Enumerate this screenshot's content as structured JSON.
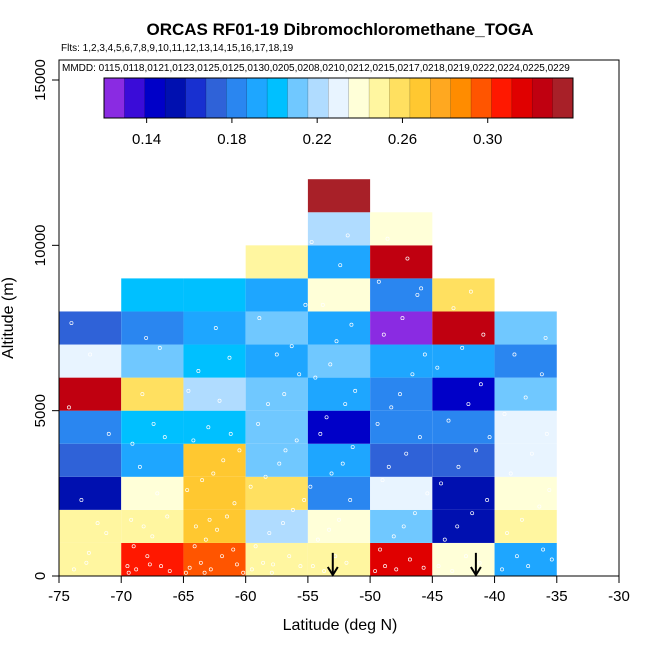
{
  "chart_data": {
    "type": "heatmap",
    "title": "ORCAS RF01-19 Dibromochloromethane_TOGA",
    "flights_text": "Flts: 1,2,3,4,5,6,7,8,9,10,11,12,13,14,15,16,17,18,19",
    "mmdd_text": "MMDD: 0115,0118,0121,0123,0125,0125,0130,0205,0208,0210,0212,0215,0217,0218,0219,0222,0224,0225,0229",
    "xlabel": "Latitude (deg N)",
    "ylabel": "Altitude (m)",
    "xlim": [
      -75,
      -30
    ],
    "ylim": [
      0,
      15000
    ],
    "xticks": [
      -75,
      -70,
      -65,
      -60,
      -55,
      -50,
      -45,
      -40,
      -35,
      -30
    ],
    "yticks": [
      0,
      5000,
      10000,
      15000
    ],
    "bin_width_deg": 5,
    "bin_height_m": 1000,
    "colorbar": {
      "vmin": 0.12,
      "vmax": 0.34,
      "ticks": [
        0.14,
        0.18,
        0.22,
        0.26,
        0.3
      ],
      "tick_labels": [
        "0.14",
        "0.18",
        "0.22",
        "0.26",
        "0.30"
      ],
      "colors": [
        "#8a2be2",
        "#3a0cd8",
        "#0000c8",
        "#0010b0",
        "#1830d0",
        "#2f62d8",
        "#2a86f0",
        "#1ea6ff",
        "#00c0ff",
        "#70c8ff",
        "#b0dcff",
        "#e8f4ff",
        "#ffffd8",
        "#fff6a0",
        "#ffe060",
        "#ffc830",
        "#ffa820",
        "#ff8c00",
        "#ff5500",
        "#ff1800",
        "#e00000",
        "#c00010",
        "#a82028"
      ]
    },
    "cells": [
      {
        "lat": -75,
        "alt": 0,
        "value": 0.245
      },
      {
        "lat": -75,
        "alt": 1000,
        "value": 0.245
      },
      {
        "lat": -75,
        "alt": 2000,
        "value": 0.15
      },
      {
        "lat": -75,
        "alt": 3000,
        "value": 0.175
      },
      {
        "lat": -75,
        "alt": 4000,
        "value": 0.182
      },
      {
        "lat": -75,
        "alt": 5000,
        "value": 0.322
      },
      {
        "lat": -75,
        "alt": 6000,
        "value": 0.234
      },
      {
        "lat": -75,
        "alt": 7000,
        "value": 0.175
      },
      {
        "lat": -70,
        "alt": 0,
        "value": 0.302
      },
      {
        "lat": -70,
        "alt": 1000,
        "value": 0.248
      },
      {
        "lat": -70,
        "alt": 2000,
        "value": 0.237
      },
      {
        "lat": -70,
        "alt": 3000,
        "value": 0.189
      },
      {
        "lat": -70,
        "alt": 4000,
        "value": 0.201
      },
      {
        "lat": -70,
        "alt": 5000,
        "value": 0.261
      },
      {
        "lat": -70,
        "alt": 6000,
        "value": 0.213
      },
      {
        "lat": -70,
        "alt": 7000,
        "value": 0.184
      },
      {
        "lat": -70,
        "alt": 8000,
        "value": 0.205
      },
      {
        "lat": -65,
        "alt": 0,
        "value": 0.296
      },
      {
        "lat": -65,
        "alt": 1000,
        "value": 0.269
      },
      {
        "lat": -65,
        "alt": 2000,
        "value": 0.272
      },
      {
        "lat": -65,
        "alt": 3000,
        "value": 0.264
      },
      {
        "lat": -65,
        "alt": 4000,
        "value": 0.205
      },
      {
        "lat": -65,
        "alt": 5000,
        "value": 0.219
      },
      {
        "lat": -65,
        "alt": 6000,
        "value": 0.203
      },
      {
        "lat": -65,
        "alt": 7000,
        "value": 0.193
      },
      {
        "lat": -65,
        "alt": 8000,
        "value": 0.199
      },
      {
        "lat": -60,
        "alt": 0,
        "value": 0.245
      },
      {
        "lat": -60,
        "alt": 1000,
        "value": 0.218
      },
      {
        "lat": -60,
        "alt": 2000,
        "value": 0.258
      },
      {
        "lat": -60,
        "alt": 3000,
        "value": 0.212
      },
      {
        "lat": -60,
        "alt": 4000,
        "value": 0.212
      },
      {
        "lat": -60,
        "alt": 5000,
        "value": 0.209
      },
      {
        "lat": -60,
        "alt": 6000,
        "value": 0.195
      },
      {
        "lat": -60,
        "alt": 7000,
        "value": 0.212
      },
      {
        "lat": -60,
        "alt": 8000,
        "value": 0.193
      },
      {
        "lat": -60,
        "alt": 9000,
        "value": 0.251
      },
      {
        "lat": -55,
        "alt": 0,
        "value": 0.245
      },
      {
        "lat": -55,
        "alt": 1000,
        "value": 0.238
      },
      {
        "lat": -55,
        "alt": 2000,
        "value": 0.181
      },
      {
        "lat": -55,
        "alt": 3000,
        "value": 0.193
      },
      {
        "lat": -55,
        "alt": 4000,
        "value": 0.148
      },
      {
        "lat": -55,
        "alt": 5000,
        "value": 0.188
      },
      {
        "lat": -55,
        "alt": 6000,
        "value": 0.215
      },
      {
        "lat": -55,
        "alt": 7000,
        "value": 0.195
      },
      {
        "lat": -55,
        "alt": 8000,
        "value": 0.235
      },
      {
        "lat": -55,
        "alt": 9000,
        "value": 0.188
      },
      {
        "lat": -55,
        "alt": 10000,
        "value": 0.217
      },
      {
        "lat": -55,
        "alt": 11000,
        "value": 0.34
      },
      {
        "lat": -50,
        "alt": 0,
        "value": 0.315
      },
      {
        "lat": -50,
        "alt": 1000,
        "value": 0.208
      },
      {
        "lat": -50,
        "alt": 2000,
        "value": 0.23
      },
      {
        "lat": -50,
        "alt": 3000,
        "value": 0.168
      },
      {
        "lat": -50,
        "alt": 4000,
        "value": 0.183
      },
      {
        "lat": -50,
        "alt": 5000,
        "value": 0.178
      },
      {
        "lat": -50,
        "alt": 6000,
        "value": 0.195
      },
      {
        "lat": -50,
        "alt": 7000,
        "value": 0.128
      },
      {
        "lat": -50,
        "alt": 8000,
        "value": 0.181
      },
      {
        "lat": -50,
        "alt": 9000,
        "value": 0.324
      },
      {
        "lat": -50,
        "alt": 10000,
        "value": 0.235
      },
      {
        "lat": -45,
        "alt": 0,
        "value": 0.242
      },
      {
        "lat": -45,
        "alt": 1000,
        "value": 0.152
      },
      {
        "lat": -45,
        "alt": 2000,
        "value": 0.152
      },
      {
        "lat": -45,
        "alt": 3000,
        "value": 0.172
      },
      {
        "lat": -45,
        "alt": 4000,
        "value": 0.183
      },
      {
        "lat": -45,
        "alt": 5000,
        "value": 0.142
      },
      {
        "lat": -45,
        "alt": 6000,
        "value": 0.188
      },
      {
        "lat": -45,
        "alt": 7000,
        "value": 0.326
      },
      {
        "lat": -45,
        "alt": 8000,
        "value": 0.257
      },
      {
        "lat": -40,
        "alt": 0,
        "value": 0.196
      },
      {
        "lat": -40,
        "alt": 1000,
        "value": 0.245
      },
      {
        "lat": -40,
        "alt": 2000,
        "value": 0.236
      },
      {
        "lat": -40,
        "alt": 3000,
        "value": 0.232
      },
      {
        "lat": -40,
        "alt": 4000,
        "value": 0.227
      },
      {
        "lat": -40,
        "alt": 5000,
        "value": 0.213
      },
      {
        "lat": -40,
        "alt": 6000,
        "value": 0.183
      },
      {
        "lat": -40,
        "alt": 7000,
        "value": 0.215
      }
    ],
    "arrows": [
      {
        "lat": -53
      },
      {
        "lat": -41.5
      }
    ],
    "arrow_alt_top_m": 700,
    "sample_points": [
      [
        -73.8,
        200
      ],
      [
        -72.6,
        700
      ],
      [
        -71.9,
        1600
      ],
      [
        -73.2,
        2300
      ],
      [
        -71.0,
        4300
      ],
      [
        -74.2,
        5100
      ],
      [
        -72.5,
        6700
      ],
      [
        -74.0,
        7650
      ],
      [
        -71.2,
        1300
      ],
      [
        -72.8,
        400
      ],
      [
        -69.5,
        300
      ],
      [
        -68.8,
        200
      ],
      [
        -67.9,
        600
      ],
      [
        -66.8,
        300
      ],
      [
        -69.0,
        900
      ],
      [
        -67.5,
        1200
      ],
      [
        -68.2,
        1500
      ],
      [
        -66.3,
        1800
      ],
      [
        -69.2,
        1700
      ],
      [
        -67.1,
        2500
      ],
      [
        -68.5,
        3300
      ],
      [
        -69.1,
        4000
      ],
      [
        -66.5,
        4200
      ],
      [
        -67.4,
        4600
      ],
      [
        -68.3,
        5500
      ],
      [
        -66.9,
        6900
      ],
      [
        -68.0,
        7200
      ],
      [
        -69.4,
        100
      ],
      [
        -66.1,
        150
      ],
      [
        -67.7,
        350
      ],
      [
        -64.5,
        250
      ],
      [
        -63.6,
        400
      ],
      [
        -62.8,
        200
      ],
      [
        -61.9,
        600
      ],
      [
        -60.7,
        350
      ],
      [
        -64.1,
        900
      ],
      [
        -63.2,
        1100
      ],
      [
        -62.3,
        1400
      ],
      [
        -61.5,
        1800
      ],
      [
        -60.9,
        2200
      ],
      [
        -64.7,
        2600
      ],
      [
        -63.5,
        2900
      ],
      [
        -62.6,
        3100
      ],
      [
        -61.8,
        3500
      ],
      [
        -60.5,
        3800
      ],
      [
        -64.2,
        4100
      ],
      [
        -63.0,
        4500
      ],
      [
        -61.2,
        4300
      ],
      [
        -62.1,
        5300
      ],
      [
        -64.6,
        5600
      ],
      [
        -63.8,
        6200
      ],
      [
        -62.4,
        7500
      ],
      [
        -61.3,
        6600
      ],
      [
        -64.0,
        1500
      ],
      [
        -62.9,
        1700
      ],
      [
        -61.0,
        800
      ],
      [
        -63.3,
        100
      ],
      [
        -60.2,
        100
      ],
      [
        -64.8,
        100
      ],
      [
        -59.5,
        200
      ],
      [
        -58.6,
        400
      ],
      [
        -57.8,
        350
      ],
      [
        -56.5,
        600
      ],
      [
        -55.6,
        300
      ],
      [
        -59.2,
        900
      ],
      [
        -58.1,
        1300
      ],
      [
        -57.0,
        1600
      ],
      [
        -56.2,
        2000
      ],
      [
        -55.3,
        2300
      ],
      [
        -59.6,
        2700
      ],
      [
        -58.4,
        3000
      ],
      [
        -57.3,
        3400
      ],
      [
        -56.8,
        3800
      ],
      [
        -55.9,
        4100
      ],
      [
        -59.0,
        4600
      ],
      [
        -58.2,
        5200
      ],
      [
        -56.9,
        5500
      ],
      [
        -55.7,
        6100
      ],
      [
        -57.5,
        6700
      ],
      [
        -56.3,
        6950
      ],
      [
        -58.9,
        7800
      ],
      [
        -55.2,
        8200
      ],
      [
        -57.9,
        100
      ],
      [
        -54.6,
        300
      ],
      [
        -53.7,
        150
      ],
      [
        -52.8,
        600
      ],
      [
        -51.9,
        400
      ],
      [
        -54.2,
        1100
      ],
      [
        -53.3,
        1400
      ],
      [
        -52.5,
        1700
      ],
      [
        -51.6,
        2300
      ],
      [
        -54.8,
        2700
      ],
      [
        -53.1,
        3100
      ],
      [
        -52.2,
        3400
      ],
      [
        -51.4,
        3900
      ],
      [
        -54.0,
        4300
      ],
      [
        -53.5,
        4800
      ],
      [
        -52.0,
        5200
      ],
      [
        -51.2,
        5600
      ],
      [
        -54.4,
        6000
      ],
      [
        -53.2,
        6400
      ],
      [
        -52.7,
        7100
      ],
      [
        -51.5,
        7600
      ],
      [
        -53.8,
        8200
      ],
      [
        -52.4,
        9400
      ],
      [
        -54.7,
        10100
      ],
      [
        -51.8,
        10300
      ],
      [
        -49.6,
        150
      ],
      [
        -48.8,
        300
      ],
      [
        -47.9,
        200
      ],
      [
        -46.8,
        500
      ],
      [
        -45.7,
        250
      ],
      [
        -49.2,
        800
      ],
      [
        -48.1,
        1200
      ],
      [
        -47.3,
        1500
      ],
      [
        -46.4,
        1900
      ],
      [
        -45.4,
        2500
      ],
      [
        -49.0,
        2900
      ],
      [
        -48.5,
        3300
      ],
      [
        -47.1,
        3700
      ],
      [
        -46.0,
        4200
      ],
      [
        -49.4,
        4600
      ],
      [
        -48.3,
        5100
      ],
      [
        -47.6,
        5500
      ],
      [
        -46.6,
        6100
      ],
      [
        -45.6,
        6700
      ],
      [
        -48.9,
        7300
      ],
      [
        -47.4,
        7800
      ],
      [
        -46.2,
        8500
      ],
      [
        -49.3,
        8900
      ],
      [
        -47.0,
        9600
      ],
      [
        -48.6,
        10200
      ],
      [
        -45.9,
        8700
      ],
      [
        -44.5,
        300
      ],
      [
        -43.4,
        150
      ],
      [
        -42.3,
        600
      ],
      [
        -41.2,
        400
      ],
      [
        -44.0,
        1100
      ],
      [
        -43.0,
        1500
      ],
      [
        -41.8,
        1900
      ],
      [
        -40.6,
        2300
      ],
      [
        -44.3,
        2800
      ],
      [
        -42.9,
        3300
      ],
      [
        -41.5,
        3800
      ],
      [
        -40.4,
        4200
      ],
      [
        -43.7,
        4700
      ],
      [
        -42.1,
        5200
      ],
      [
        -41.1,
        5800
      ],
      [
        -44.6,
        6300
      ],
      [
        -42.6,
        6900
      ],
      [
        -40.9,
        7300
      ],
      [
        -43.3,
        8100
      ],
      [
        -41.9,
        8600
      ],
      [
        -39.4,
        200
      ],
      [
        -38.2,
        600
      ],
      [
        -37.3,
        300
      ],
      [
        -36.1,
        800
      ],
      [
        -35.4,
        500
      ],
      [
        -39.0,
        1300
      ],
      [
        -37.8,
        1700
      ],
      [
        -36.4,
        2100
      ],
      [
        -35.6,
        2600
      ],
      [
        -38.7,
        3100
      ],
      [
        -37.0,
        3700
      ],
      [
        -35.8,
        4300
      ],
      [
        -39.2,
        4900
      ],
      [
        -37.5,
        5400
      ],
      [
        -36.2,
        6100
      ],
      [
        -38.4,
        6700
      ],
      [
        -35.9,
        7200
      ]
    ]
  }
}
